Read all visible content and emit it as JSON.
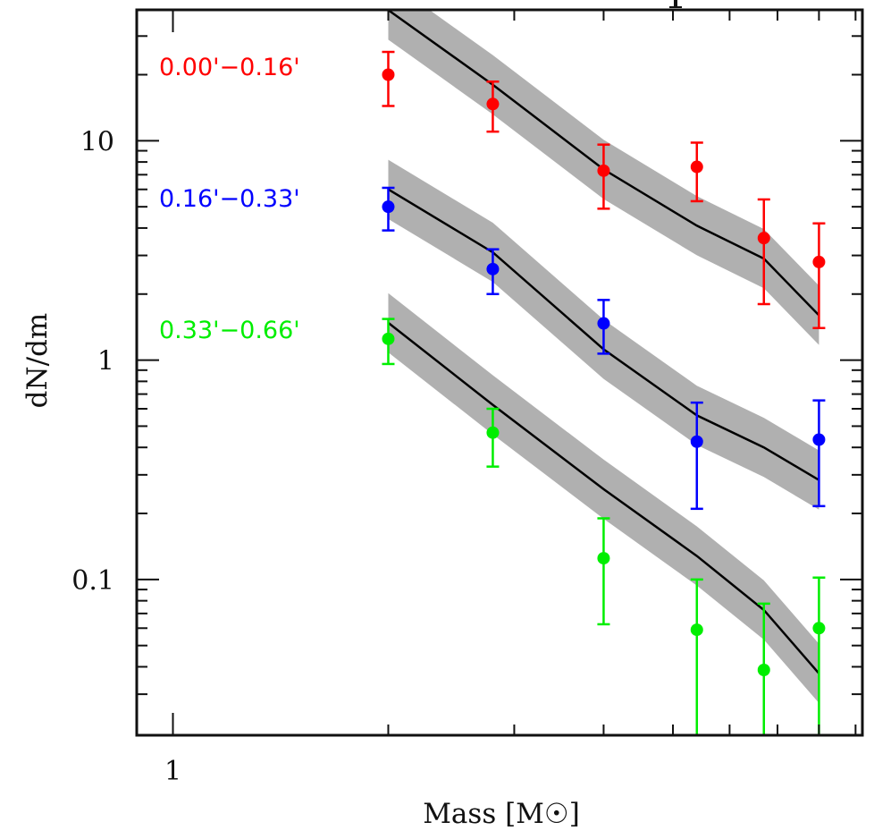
{
  "chart_data": {
    "type": "scatter",
    "title": "",
    "xlabel": "Mass [M☉]",
    "ylabel": "dN/dm",
    "xscale": "log",
    "yscale": "log",
    "xlim": [
      0.89,
      9.2
    ],
    "ylim": [
      0.0195,
      39.5
    ],
    "x_tick_labels": [
      {
        "value": 1,
        "label": "1"
      }
    ],
    "y_tick_labels": [
      {
        "value": 0.1,
        "label": "0.1"
      },
      {
        "value": 1,
        "label": "1"
      },
      {
        "value": 10,
        "label": "10"
      }
    ],
    "x_minor_ticks": [
      2,
      3,
      4,
      5,
      6,
      7,
      8,
      9
    ],
    "y_minor_ticks": [
      0.03,
      0.04,
      0.05,
      0.06,
      0.07,
      0.08,
      0.09,
      0.2,
      0.3,
      0.4,
      0.5,
      0.6,
      0.7,
      0.8,
      0.9,
      2,
      3,
      4,
      5,
      6,
      7,
      8,
      9,
      20,
      30
    ],
    "grid": false,
    "legend_placement": "left, beside each series",
    "model_band_factor_dex": 0.135,
    "series": [
      {
        "name": "0.00'−0.16'",
        "color": "#ff0000",
        "points": [
          {
            "x": 2.0,
            "y": 20.0,
            "y_hi": 25.4,
            "y_lo": 14.4
          },
          {
            "x": 2.8,
            "y": 14.7,
            "y_hi": 18.6,
            "y_lo": 11.0
          },
          {
            "x": 4.0,
            "y": 7.3,
            "y_hi": 9.6,
            "y_lo": 4.9
          },
          {
            "x": 5.4,
            "y": 7.6,
            "y_hi": 9.8,
            "y_lo": 5.3
          },
          {
            "x": 6.7,
            "y": 3.6,
            "y_hi": 5.4,
            "y_lo": 1.8
          },
          {
            "x": 8.0,
            "y": 2.8,
            "y_hi": 4.2,
            "y_lo": 1.4
          }
        ],
        "model": {
          "x": [
            2.0,
            2.8,
            4.0,
            5.4,
            6.7,
            8.0
          ],
          "y": [
            39.4,
            18.0,
            7.4,
            4.1,
            2.9,
            1.6
          ]
        }
      },
      {
        "name": "0.16'−0.33'",
        "color": "#0000ff",
        "points": [
          {
            "x": 2.0,
            "y": 5.0,
            "y_hi": 6.1,
            "y_lo": 3.9
          },
          {
            "x": 2.8,
            "y": 2.6,
            "y_hi": 3.2,
            "y_lo": 2.0
          },
          {
            "x": 4.0,
            "y": 1.47,
            "y_hi": 1.88,
            "y_lo": 1.07
          },
          {
            "x": 5.4,
            "y": 0.425,
            "y_hi": 0.64,
            "y_lo": 0.21
          },
          {
            "x": 8.0,
            "y": 0.434,
            "y_hi": 0.655,
            "y_lo": 0.216
          }
        ],
        "model": {
          "x": [
            2.0,
            2.8,
            4.0,
            5.4,
            6.7,
            8.0
          ],
          "y": [
            6.0,
            3.1,
            1.12,
            0.56,
            0.4,
            0.284
          ]
        }
      },
      {
        "name": "0.33'−0.66'",
        "color": "#00ee00",
        "points": [
          {
            "x": 2.0,
            "y": 1.25,
            "y_hi": 1.54,
            "y_lo": 0.96
          },
          {
            "x": 2.8,
            "y": 0.467,
            "y_hi": 0.6,
            "y_lo": 0.327
          },
          {
            "x": 4.0,
            "y": 0.125,
            "y_hi": 0.19,
            "y_lo": 0.0625
          },
          {
            "x": 5.4,
            "y": 0.059,
            "y_hi": 0.1,
            "y_lo": 0.0
          },
          {
            "x": 6.7,
            "y": 0.0387,
            "y_hi": 0.0776,
            "y_lo": 0.0
          },
          {
            "x": 8.0,
            "y": 0.06,
            "y_hi": 0.102,
            "y_lo": 0.0
          }
        ],
        "model": {
          "x": [
            2.0,
            2.8,
            4.0,
            5.4,
            6.7,
            8.0
          ],
          "y": [
            1.48,
            0.625,
            0.258,
            0.128,
            0.0726,
            0.0373
          ]
        }
      }
    ],
    "colors": {
      "axis": "#111111",
      "model_line": "#000000",
      "model_band": "#b0b0b0"
    }
  }
}
